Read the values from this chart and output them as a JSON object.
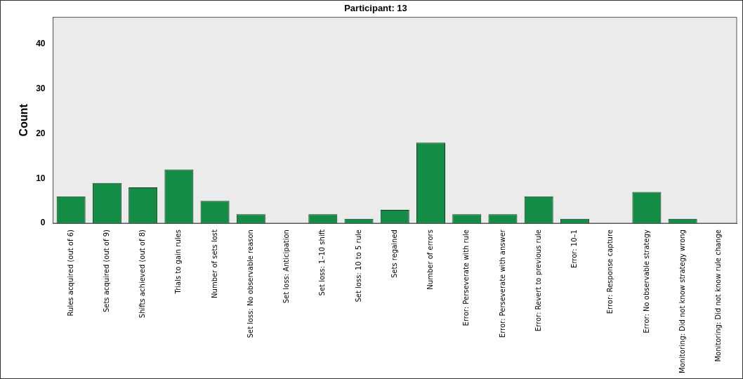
{
  "chart_data": {
    "type": "bar",
    "title": "Participant: 13",
    "ylabel": "Count",
    "categories": [
      "Rules acquired (out of 6)",
      "Sets acquired (out of 9)",
      "Shifts achieved (out of 8)",
      "Trials to gain rules",
      "Number of sets lost",
      "Set loss: No observable reason",
      "Set loss: Anticipation",
      "Set loss: 1–10 shift",
      "Set loss: 10 to 5 rule",
      "Sets regained",
      "Number of errors",
      "Error: Perseverate with rule",
      "Error: Perseverate with answer",
      "Error: Revert to previous rule",
      "Error: 10–1",
      "Error: Response capture",
      "Error: No observable strategy",
      "Monitoring: Did not know strategy wrong",
      "Monitoring: Did not know rule change"
    ],
    "values": [
      6,
      9,
      8,
      12,
      5,
      2,
      0,
      2,
      1,
      3,
      18,
      2,
      2,
      6,
      1,
      0,
      7,
      1,
      0
    ],
    "color": "#138c45",
    "ylim": [
      0,
      46
    ],
    "yticks": [
      0,
      10,
      20,
      30,
      40
    ],
    "grid": false,
    "legend": false
  }
}
